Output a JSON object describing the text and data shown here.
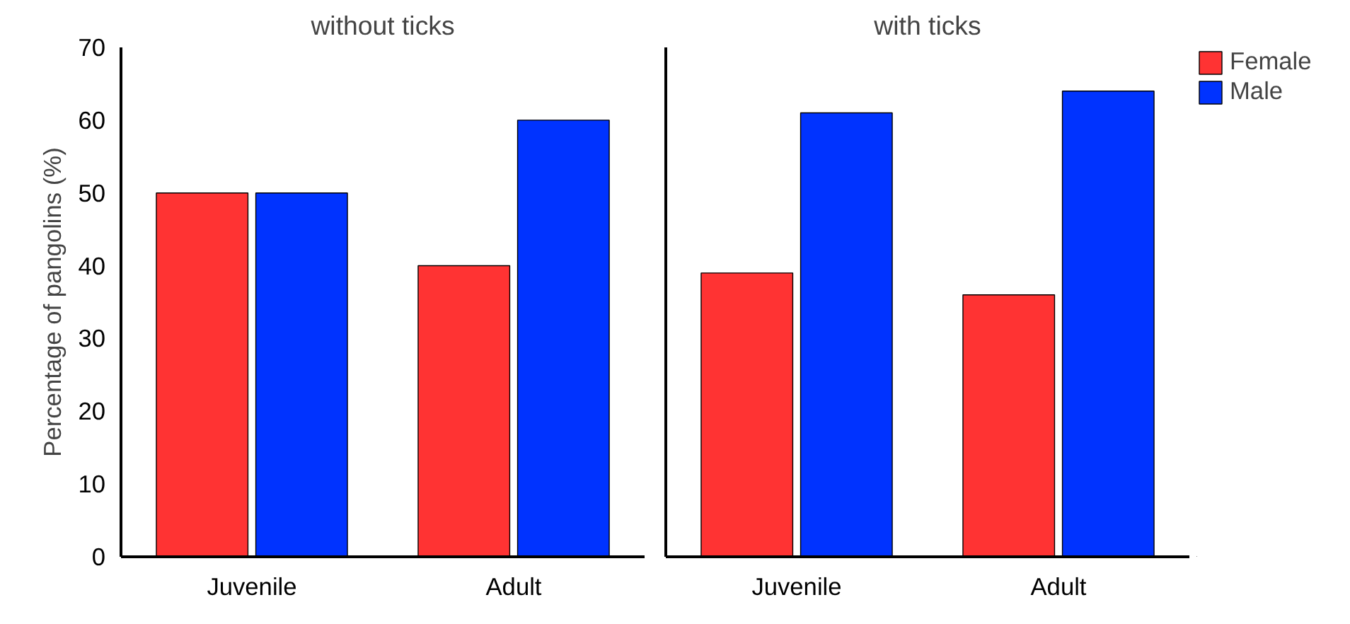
{
  "chart_data": [
    {
      "type": "bar",
      "title": "without ticks",
      "ylabel": "Percentage of pangolins (%)",
      "categories": [
        "Juvenile",
        "Adult"
      ],
      "series": [
        {
          "color": "#ff3333",
          "values": [
            50,
            40
          ]
        },
        {
          "color": "#0033ff",
          "values": [
            50,
            60
          ]
        }
      ],
      "ylim": [
        0,
        70
      ],
      "yticks": [
        0,
        10,
        20,
        30,
        40,
        50,
        60,
        70
      ],
      "grid": false,
      "legend": false
    },
    {
      "type": "bar",
      "title": "with ticks",
      "categories": [
        "Juvenile",
        "Adult"
      ],
      "series": [
        {
          "name": "Female",
          "color": "#ff3333",
          "values": [
            39,
            36
          ]
        },
        {
          "name": "Male",
          "color": "#0033ff",
          "values": [
            61,
            64
          ]
        }
      ],
      "ylim": [
        0,
        70
      ],
      "yticks": [
        0,
        10,
        20,
        30,
        40,
        50,
        60,
        70
      ],
      "grid": false,
      "legend": "top right",
      "tick_labels": "x"
    }
  ]
}
